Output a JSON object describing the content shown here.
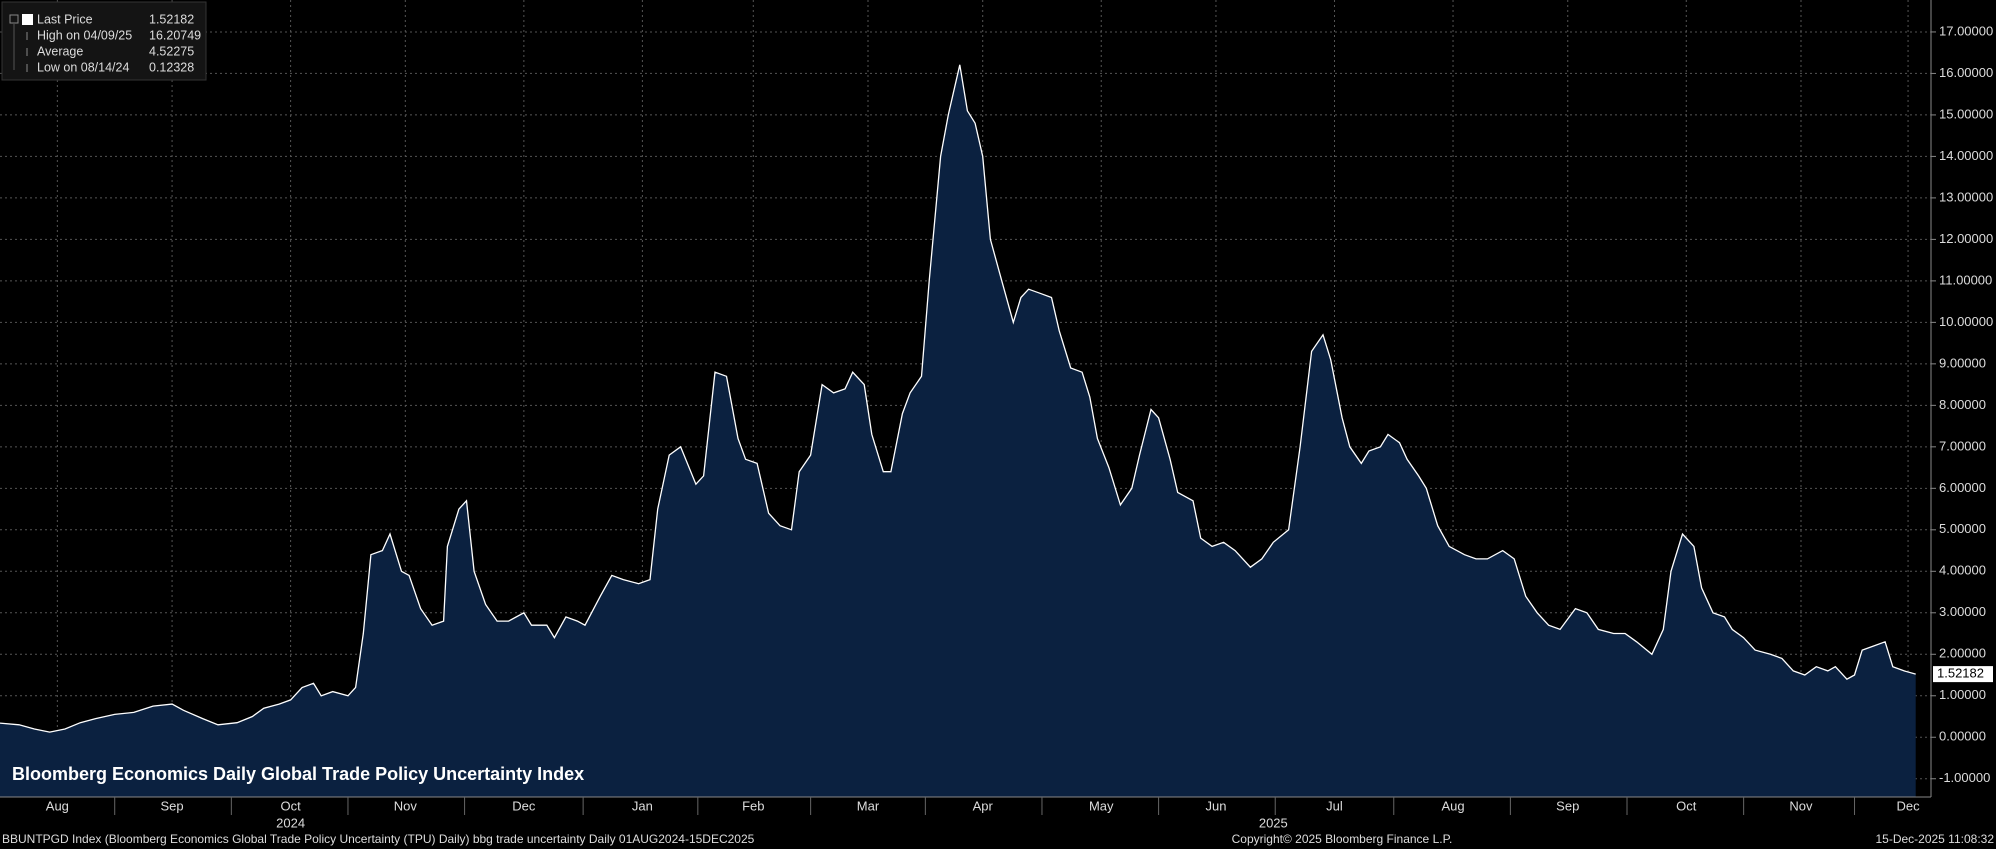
{
  "chart_data": {
    "type": "area",
    "annotation": "Bloomberg Economics Daily Global Trade Policy Uncertainty Index",
    "legend": [
      {
        "label": "Last Price",
        "value": 1.52182
      },
      {
        "label": "High on 04/09/25",
        "value": 16.20749
      },
      {
        "label": "Average",
        "value": 4.52275
      },
      {
        "label": "Low on 08/14/24",
        "value": 0.12328
      }
    ],
    "footer": {
      "left": "BBUNTPGD Index (Bloomberg Economics Global Trade Policy Uncertainty (TPU) Daily) bbg trade uncertainty Daily 01AUG2024-15DEC2025",
      "center": "Copyright© 2025 Bloomberg Finance L.P.",
      "right": "15-Dec-2025 11:08:32"
    },
    "x": [
      "2024-08-01",
      "2024-08-06",
      "2024-08-10",
      "2024-08-14",
      "2024-08-18",
      "2024-08-22",
      "2024-08-26",
      "2024-08-31",
      "2024-09-05",
      "2024-09-10",
      "2024-09-15",
      "2024-09-18",
      "2024-09-23",
      "2024-09-27",
      "2024-10-02",
      "2024-10-06",
      "2024-10-09",
      "2024-10-13",
      "2024-10-16",
      "2024-10-19",
      "2024-10-22",
      "2024-10-24",
      "2024-10-27",
      "2024-10-31",
      "2024-11-02",
      "2024-11-04",
      "2024-11-06",
      "2024-11-09",
      "2024-11-11",
      "2024-11-14",
      "2024-11-16",
      "2024-11-19",
      "2024-11-22",
      "2024-11-25",
      "2024-11-26",
      "2024-11-29",
      "2024-12-01",
      "2024-12-03",
      "2024-12-06",
      "2024-12-09",
      "2024-12-12",
      "2024-12-16",
      "2024-12-18",
      "2024-12-22",
      "2024-12-24",
      "2024-12-27",
      "2024-12-30",
      "2025-01-01",
      "2025-01-05",
      "2025-01-08",
      "2025-01-11",
      "2025-01-15",
      "2025-01-18",
      "2025-01-20",
      "2025-01-23",
      "2025-01-26",
      "2025-01-30",
      "2025-02-01",
      "2025-02-04",
      "2025-02-07",
      "2025-02-10",
      "2025-02-12",
      "2025-02-15",
      "2025-02-18",
      "2025-02-21",
      "2025-02-24",
      "2025-02-26",
      "2025-03-01",
      "2025-03-04",
      "2025-03-07",
      "2025-03-10",
      "2025-03-12",
      "2025-03-15",
      "2025-03-17",
      "2025-03-20",
      "2025-03-22",
      "2025-03-25",
      "2025-03-27",
      "2025-03-30",
      "2025-04-01",
      "2025-04-04",
      "2025-04-06",
      "2025-04-09",
      "2025-04-11",
      "2025-04-13",
      "2025-04-15",
      "2025-04-17",
      "2025-04-20",
      "2025-04-23",
      "2025-04-25",
      "2025-04-27",
      "2025-04-30",
      "2025-05-03",
      "2025-05-05",
      "2025-05-08",
      "2025-05-11",
      "2025-05-13",
      "2025-05-15",
      "2025-05-18",
      "2025-05-21",
      "2025-05-24",
      "2025-05-26",
      "2025-05-29",
      "2025-05-31",
      "2025-06-03",
      "2025-06-05",
      "2025-06-09",
      "2025-06-11",
      "2025-06-14",
      "2025-06-17",
      "2025-06-20",
      "2025-06-24",
      "2025-06-27",
      "2025-06-30",
      "2025-07-04",
      "2025-07-07",
      "2025-07-10",
      "2025-07-13",
      "2025-07-15",
      "2025-07-18",
      "2025-07-20",
      "2025-07-23",
      "2025-07-25",
      "2025-07-28",
      "2025-07-30",
      "2025-08-02",
      "2025-08-04",
      "2025-08-07",
      "2025-08-09",
      "2025-08-12",
      "2025-08-15",
      "2025-08-19",
      "2025-08-22",
      "2025-08-25",
      "2025-08-29",
      "2025-09-01",
      "2025-09-04",
      "2025-09-07",
      "2025-09-10",
      "2025-09-13",
      "2025-09-17",
      "2025-09-20",
      "2025-09-23",
      "2025-09-27",
      "2025-09-30",
      "2025-10-03",
      "2025-10-07",
      "2025-10-10",
      "2025-10-12",
      "2025-10-15",
      "2025-10-18",
      "2025-10-20",
      "2025-10-23",
      "2025-10-26",
      "2025-10-28",
      "2025-10-31",
      "2025-11-03",
      "2025-11-07",
      "2025-11-10",
      "2025-11-13",
      "2025-11-16",
      "2025-11-19",
      "2025-11-22",
      "2025-11-24",
      "2025-11-27",
      "2025-11-29",
      "2025-12-01",
      "2025-12-04",
      "2025-12-07",
      "2025-12-09",
      "2025-12-12",
      "2025-12-15"
    ],
    "series": [
      {
        "color": "#ffffff",
        "fill": "#0b2140",
        "values": [
          0.34,
          0.3,
          0.2,
          0.12328,
          0.2,
          0.35,
          0.45,
          0.55,
          0.6,
          0.75,
          0.8,
          0.65,
          0.45,
          0.3,
          0.35,
          0.5,
          0.7,
          0.8,
          0.9,
          1.2,
          1.3,
          1.0,
          1.1,
          1.0,
          1.2,
          2.5,
          4.4,
          4.5,
          4.9,
          4.0,
          3.9,
          3.1,
          2.7,
          2.8,
          4.6,
          5.5,
          5.7,
          4.0,
          3.2,
          2.8,
          2.8,
          3.0,
          2.7,
          2.7,
          2.4,
          2.9,
          2.8,
          2.7,
          3.4,
          3.9,
          3.8,
          3.7,
          3.8,
          5.5,
          6.8,
          7.0,
          6.1,
          6.3,
          8.8,
          8.7,
          7.2,
          6.7,
          6.6,
          5.4,
          5.1,
          5.0,
          6.4,
          6.8,
          8.5,
          8.3,
          8.4,
          8.8,
          8.5,
          7.3,
          6.4,
          6.4,
          7.8,
          8.3,
          8.7,
          11.0,
          14.0,
          15.0,
          16.20749,
          15.1,
          14.8,
          14.0,
          12.0,
          11.0,
          10.0,
          10.6,
          10.8,
          10.7,
          10.6,
          9.8,
          8.9,
          8.8,
          8.2,
          7.2,
          6.5,
          5.6,
          6.0,
          6.8,
          7.9,
          7.7,
          6.7,
          5.9,
          5.7,
          4.8,
          4.6,
          4.7,
          4.5,
          4.1,
          4.3,
          4.7,
          5.0,
          7.0,
          9.3,
          9.7,
          9.1,
          7.7,
          7.0,
          6.6,
          6.9,
          7.0,
          7.3,
          7.1,
          6.7,
          6.3,
          6.0,
          5.1,
          4.6,
          4.4,
          4.3,
          4.3,
          4.5,
          4.3,
          3.4,
          3.0,
          2.7,
          2.6,
          3.1,
          3.0,
          2.6,
          2.5,
          2.5,
          2.3,
          2.0,
          2.6,
          4.0,
          4.9,
          4.6,
          3.6,
          3.0,
          2.9,
          2.6,
          2.4,
          2.1,
          2.0,
          1.9,
          1.6,
          1.5,
          1.7,
          1.6,
          1.7,
          1.4,
          1.5,
          2.1,
          2.2,
          2.3,
          1.7,
          1.6,
          1.52182
        ]
      }
    ],
    "xlim": [
      "2024-08-01",
      "2025-12-19"
    ],
    "xticks": [
      {
        "value": "2024-08-16",
        "label": "Aug"
      },
      {
        "value": "2024-09-15",
        "label": "Sep"
      },
      {
        "value": "2024-10-16",
        "label": "Oct"
      },
      {
        "value": "2024-11-15",
        "label": "Nov"
      },
      {
        "value": "2024-12-16",
        "label": "Dec"
      },
      {
        "value": "2025-01-16",
        "label": "Jan"
      },
      {
        "value": "2025-02-14",
        "label": "Feb"
      },
      {
        "value": "2025-03-16",
        "label": "Mar"
      },
      {
        "value": "2025-04-15",
        "label": "Apr"
      },
      {
        "value": "2025-05-16",
        "label": "May"
      },
      {
        "value": "2025-06-15",
        "label": "Jun"
      },
      {
        "value": "2025-07-16",
        "label": "Jul"
      },
      {
        "value": "2025-08-16",
        "label": "Aug"
      },
      {
        "value": "2025-09-15",
        "label": "Sep"
      },
      {
        "value": "2025-10-16",
        "label": "Oct"
      },
      {
        "value": "2025-11-15",
        "label": "Nov"
      },
      {
        "value": "2025-12-13",
        "label": "Dec"
      }
    ],
    "year_labels": [
      {
        "value": "2024-10-16",
        "label": "2024"
      },
      {
        "value": "2025-06-30",
        "label": "2025"
      }
    ],
    "ylim": [
      -1.44,
      17.77
    ],
    "yticks": [
      {
        "value": -1,
        "label": "-1.00000"
      },
      {
        "value": 0,
        "label": "0.00000"
      },
      {
        "value": 1,
        "label": "1.00000"
      },
      {
        "value": 2,
        "label": "2.00000"
      },
      {
        "value": 3,
        "label": "3.00000"
      },
      {
        "value": 4,
        "label": "4.00000"
      },
      {
        "value": 5,
        "label": "5.00000"
      },
      {
        "value": 6,
        "label": "6.00000"
      },
      {
        "value": 7,
        "label": "7.00000"
      },
      {
        "value": 8,
        "label": "8.00000"
      },
      {
        "value": 9,
        "label": "9.00000"
      },
      {
        "value": 10,
        "label": "10.00000"
      },
      {
        "value": 11,
        "label": "11.00000"
      },
      {
        "value": 12,
        "label": "12.00000"
      },
      {
        "value": 13,
        "label": "13.00000"
      },
      {
        "value": 14,
        "label": "14.00000"
      },
      {
        "value": 15,
        "label": "15.00000"
      },
      {
        "value": 16,
        "label": "16.00000"
      },
      {
        "value": 17,
        "label": "17.00000"
      }
    ],
    "grid": true
  }
}
